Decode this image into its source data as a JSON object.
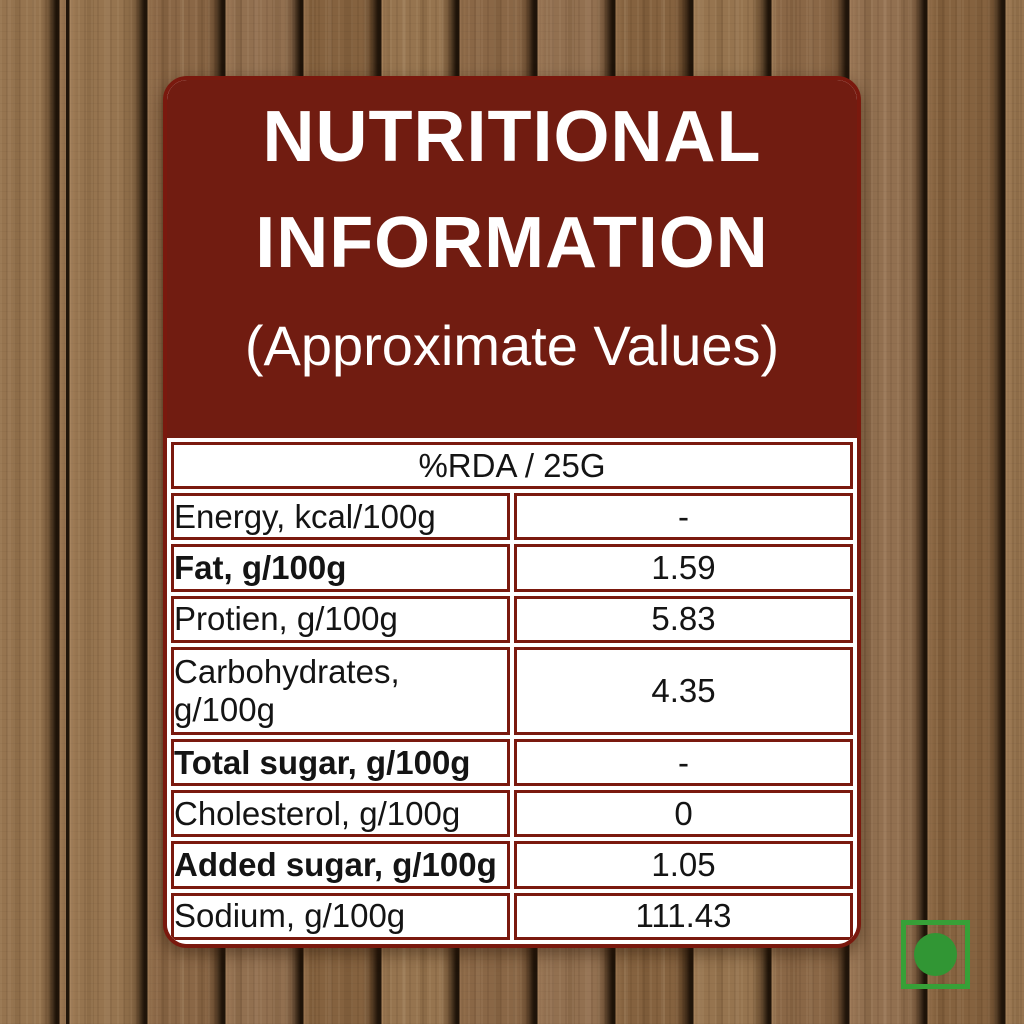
{
  "card": {
    "header": {
      "title_line1": "NUTRITIONAL",
      "title_line2": "INFORMATION",
      "subtitle": "(Approximate Values)",
      "bg_color": "#711c11",
      "text_color": "#ffffff"
    },
    "table": {
      "column_header": "%RDA / 25G",
      "border_color": "#7a190e",
      "rows": [
        {
          "label": "Energy, kcal/100g",
          "value": "-",
          "bold": false
        },
        {
          "label": "Fat, g/100g",
          "value": "1.59",
          "bold": true
        },
        {
          "label": "Protien, g/100g",
          "value": "5.83",
          "bold": false
        },
        {
          "label": "Carbohydrates, g/100g",
          "value": "4.35",
          "bold": false
        },
        {
          "label": "Total sugar, g/100g",
          "value": "-",
          "bold": true
        },
        {
          "label": "Cholesterol, g/100g",
          "value": "0",
          "bold": false
        },
        {
          "label": "Added sugar, g/100g",
          "value": "1.05",
          "bold": true
        },
        {
          "label": "Sodium, g/100g",
          "value": "111.43",
          "bold": false
        }
      ]
    }
  },
  "veg_mark": {
    "meaning": "vegetarian-symbol",
    "color": "#37a037"
  },
  "background": {
    "style": "wood-planks",
    "base_color": "#8d6b4a"
  }
}
